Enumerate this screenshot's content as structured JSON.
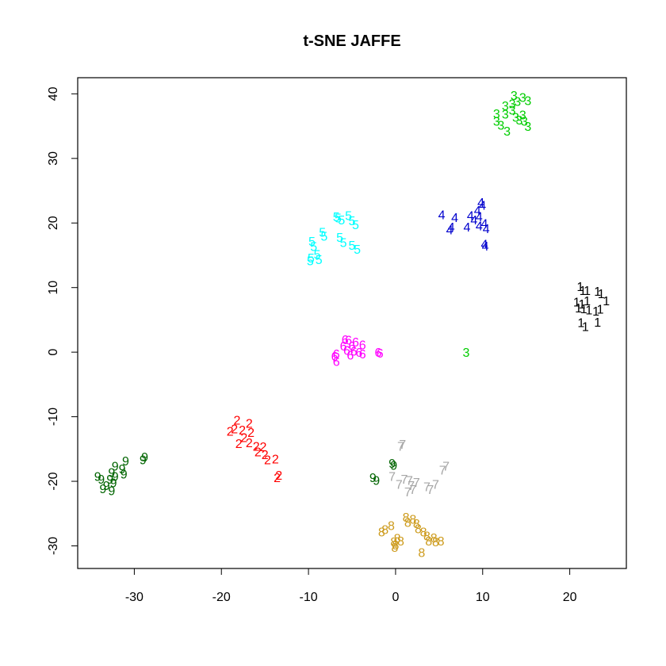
{
  "chart_data": {
    "type": "scatter",
    "title": "t-SNE JAFFE",
    "xlabel": "",
    "ylabel": "",
    "xlim": [
      -36.5,
      26.5
    ],
    "ylim": [
      -33.5,
      42.5
    ],
    "xticks": [
      -30,
      -20,
      -10,
      0,
      10,
      20
    ],
    "yticks": [
      -30,
      -20,
      -10,
      0,
      10,
      20,
      30,
      40
    ],
    "grid": false,
    "series": [
      {
        "label": "1",
        "color": "#000000",
        "points": [
          [
            21.2,
            10.2
          ],
          [
            21.5,
            9.6
          ],
          [
            22.0,
            9.6
          ],
          [
            20.8,
            7.8
          ],
          [
            21.4,
            7.5
          ],
          [
            22.0,
            8.0
          ],
          [
            21.6,
            6.8
          ],
          [
            22.2,
            6.6
          ],
          [
            21.0,
            6.9
          ],
          [
            21.3,
            4.6
          ],
          [
            21.8,
            4.0
          ],
          [
            23.2,
            9.5
          ],
          [
            23.6,
            9.1
          ],
          [
            24.2,
            8.0
          ],
          [
            23.5,
            6.7
          ],
          [
            23.0,
            6.4
          ],
          [
            23.2,
            4.7
          ]
        ]
      },
      {
        "label": "2",
        "color": "#ff0000",
        "points": [
          [
            -18.2,
            -10.5
          ],
          [
            -16.8,
            -11.0
          ],
          [
            -18.5,
            -11.8
          ],
          [
            -17.6,
            -12.0
          ],
          [
            -16.6,
            -12.4
          ],
          [
            -19.0,
            -12.2
          ],
          [
            -17.4,
            -13.2
          ],
          [
            -18.0,
            -14.1
          ],
          [
            -16.8,
            -14.0
          ],
          [
            -16.0,
            -14.5
          ],
          [
            -15.2,
            -14.6
          ],
          [
            -15.8,
            -15.4
          ],
          [
            -15.0,
            -15.8
          ],
          [
            -14.7,
            -16.6
          ],
          [
            -13.8,
            -16.5
          ],
          [
            -13.4,
            -19.0
          ],
          [
            -13.6,
            -19.4
          ]
        ]
      },
      {
        "label": "3",
        "color": "#00cd00",
        "points": [
          [
            13.6,
            39.8
          ],
          [
            14.6,
            39.5
          ],
          [
            15.2,
            39.0
          ],
          [
            14.0,
            38.9
          ],
          [
            12.6,
            38.2
          ],
          [
            13.4,
            38.5
          ],
          [
            11.6,
            37.0
          ],
          [
            12.6,
            36.9
          ],
          [
            13.4,
            37.5
          ],
          [
            14.6,
            36.8
          ],
          [
            13.8,
            36.4
          ],
          [
            14.8,
            35.8
          ],
          [
            11.6,
            35.8
          ],
          [
            12.1,
            35.2
          ],
          [
            12.8,
            34.3
          ],
          [
            14.2,
            36.0
          ],
          [
            15.2,
            35.0
          ],
          [
            8.1,
            0.0
          ]
        ]
      },
      {
        "label": "4",
        "color": "#0000cd",
        "points": [
          [
            9.8,
            23.2
          ],
          [
            10.0,
            22.8
          ],
          [
            9.4,
            22.0
          ],
          [
            5.3,
            21.3
          ],
          [
            6.8,
            20.9
          ],
          [
            8.6,
            21.2
          ],
          [
            9.6,
            21.0
          ],
          [
            9.0,
            20.5
          ],
          [
            10.2,
            20.0
          ],
          [
            9.6,
            19.6
          ],
          [
            6.4,
            19.4
          ],
          [
            6.2,
            19.0
          ],
          [
            8.2,
            19.4
          ],
          [
            10.4,
            19.2
          ],
          [
            10.2,
            16.8
          ],
          [
            10.3,
            16.5
          ]
        ]
      },
      {
        "label": "5",
        "color": "#00ffff",
        "points": [
          [
            -6.8,
            21.0
          ],
          [
            -6.6,
            20.8
          ],
          [
            -5.4,
            21.2
          ],
          [
            -6.2,
            20.5
          ],
          [
            -5.0,
            20.4
          ],
          [
            -4.6,
            19.8
          ],
          [
            -8.4,
            18.6
          ],
          [
            -8.2,
            18.0
          ],
          [
            -9.6,
            17.2
          ],
          [
            -9.4,
            16.4
          ],
          [
            -6.4,
            17.8
          ],
          [
            -6.0,
            17.0
          ],
          [
            -5.0,
            16.6
          ],
          [
            -4.4,
            16.0
          ],
          [
            -9.0,
            15.2
          ],
          [
            -9.7,
            14.6
          ],
          [
            -9.8,
            14.2
          ],
          [
            -8.8,
            14.4
          ]
        ]
      },
      {
        "label": "6",
        "color": "#ff00ff",
        "points": [
          [
            -5.8,
            2.0
          ],
          [
            -5.4,
            1.9
          ],
          [
            -4.6,
            1.6
          ],
          [
            -3.8,
            1.2
          ],
          [
            -6.0,
            1.0
          ],
          [
            -5.0,
            1.0
          ],
          [
            -5.6,
            0.3
          ],
          [
            -4.8,
            0.2
          ],
          [
            -4.2,
            0.0
          ],
          [
            -3.8,
            -0.2
          ],
          [
            -5.2,
            -0.4
          ],
          [
            -6.8,
            -0.2
          ],
          [
            -7.0,
            -0.6
          ],
          [
            -6.8,
            -1.4
          ],
          [
            -2.0,
            0.0
          ],
          [
            -1.8,
            -0.1
          ]
        ]
      },
      {
        "label": "7",
        "color": "#a6a6a6",
        "points": [
          [
            0.8,
            -14.2
          ],
          [
            0.6,
            -14.5
          ],
          [
            5.8,
            -17.6
          ],
          [
            5.4,
            -18.2
          ],
          [
            -0.4,
            -19.2
          ],
          [
            1.0,
            -19.6
          ],
          [
            1.6,
            -19.8
          ],
          [
            2.4,
            -20.1
          ],
          [
            0.4,
            -20.4
          ],
          [
            1.8,
            -20.6
          ],
          [
            3.6,
            -20.8
          ],
          [
            4.6,
            -20.4
          ],
          [
            2.0,
            -21.2
          ],
          [
            1.4,
            -21.6
          ],
          [
            4.0,
            -21.2
          ]
        ]
      },
      {
        "label": "8",
        "color": "#cd9b1d",
        "points": [
          [
            1.2,
            -25.5
          ],
          [
            2.0,
            -25.8
          ],
          [
            1.4,
            -26.3
          ],
          [
            2.4,
            -26.5
          ],
          [
            -0.5,
            -26.8
          ],
          [
            -1.2,
            -27.4
          ],
          [
            -1.6,
            -27.8
          ],
          [
            2.6,
            -27.3
          ],
          [
            3.2,
            -27.8
          ],
          [
            3.6,
            -28.4
          ],
          [
            4.4,
            -28.7
          ],
          [
            0.2,
            -28.8
          ],
          [
            0.6,
            -29.2
          ],
          [
            -0.2,
            -29.3
          ],
          [
            3.8,
            -29.2
          ],
          [
            4.6,
            -29.3
          ],
          [
            5.2,
            -29.2
          ],
          [
            0.0,
            -29.8
          ],
          [
            -0.1,
            -30.2
          ],
          [
            3.0,
            -31.0
          ]
        ]
      },
      {
        "label": "9",
        "color": "#006400",
        "points": [
          [
            -28.8,
            -16.2
          ],
          [
            -29.0,
            -16.6
          ],
          [
            -31.0,
            -16.8
          ],
          [
            -32.2,
            -17.6
          ],
          [
            -31.4,
            -18.0
          ],
          [
            -32.6,
            -18.6
          ],
          [
            -31.2,
            -18.8
          ],
          [
            -32.2,
            -19.2
          ],
          [
            -34.2,
            -19.2
          ],
          [
            -33.8,
            -19.6
          ],
          [
            -32.8,
            -19.6
          ],
          [
            -32.4,
            -20.2
          ],
          [
            -33.2,
            -20.6
          ],
          [
            -33.6,
            -21.1
          ],
          [
            -32.6,
            -21.4
          ],
          [
            -0.4,
            -17.2
          ],
          [
            -0.2,
            -17.5
          ],
          [
            -2.6,
            -19.4
          ],
          [
            -2.2,
            -19.8
          ]
        ]
      }
    ]
  }
}
